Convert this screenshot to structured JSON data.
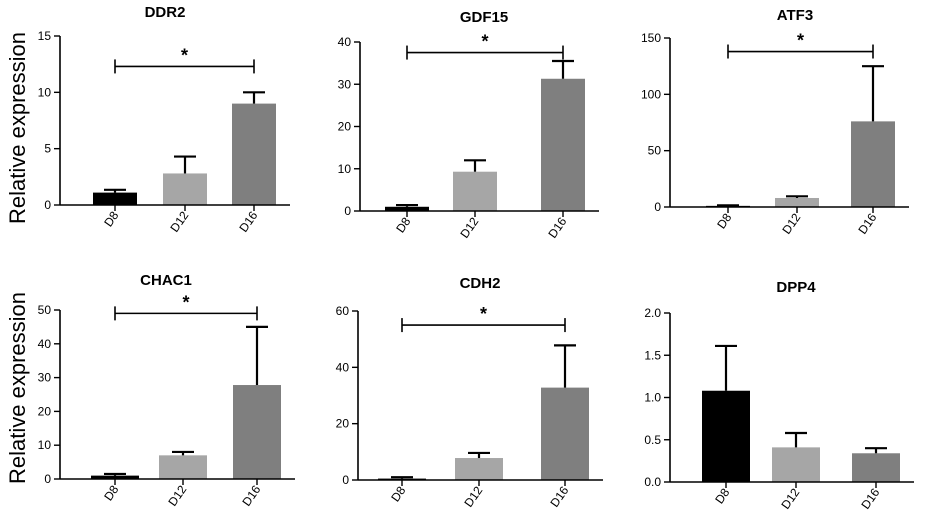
{
  "figure": {
    "ylabel": "Relative expression"
  },
  "colors": {
    "D8": "#000000",
    "D12": "#a6a6a6",
    "D16": "#7f7f7f",
    "axis": "#000000"
  },
  "chart_data": [
    {
      "type": "bar",
      "title": "DDR2",
      "categories": [
        "D8",
        "D12",
        "D16"
      ],
      "values": [
        1.1,
        2.8,
        9.0
      ],
      "errors": [
        0.25,
        1.5,
        1.0
      ],
      "ylim": [
        0,
        15
      ],
      "yticks": [
        0,
        5,
        10,
        15
      ],
      "ytick_labels": [
        "0",
        "5",
        "10",
        "15"
      ],
      "significance": {
        "from": "D8",
        "to": "D16",
        "label": "*",
        "level": 12.3
      }
    },
    {
      "type": "bar",
      "title": "GDF15",
      "categories": [
        "D8",
        "D12",
        "D16"
      ],
      "values": [
        1.0,
        9.3,
        31.3
      ],
      "errors": [
        0.4,
        2.7,
        4.2
      ],
      "ylim": [
        0,
        40
      ],
      "yticks": [
        0,
        10,
        20,
        30,
        40
      ],
      "ytick_labels": [
        "0",
        "10",
        "20",
        "30",
        "40"
      ],
      "significance": {
        "from": "D8",
        "to": "D16",
        "label": "*",
        "level": 37.5
      }
    },
    {
      "type": "bar",
      "title": "ATF3",
      "categories": [
        "D8",
        "D12",
        "D16"
      ],
      "values": [
        1.0,
        8.0,
        76.0
      ],
      "errors": [
        0.5,
        1.5,
        49.0
      ],
      "ylim": [
        0,
        150
      ],
      "yticks": [
        0,
        50,
        100,
        150
      ],
      "ytick_labels": [
        "0",
        "50",
        "100",
        "150"
      ],
      "significance": {
        "from": "D8",
        "to": "D16",
        "label": "*",
        "level": 138
      }
    },
    {
      "type": "bar",
      "title": "CHAC1",
      "categories": [
        "D8",
        "D12",
        "D16"
      ],
      "values": [
        1.0,
        7.0,
        27.8
      ],
      "errors": [
        0.5,
        1.0,
        17.2
      ],
      "ylim": [
        0,
        50
      ],
      "yticks": [
        0,
        10,
        20,
        30,
        40,
        50
      ],
      "ytick_labels": [
        "0",
        "10",
        "20",
        "30",
        "40",
        "50"
      ],
      "significance": {
        "from": "D8",
        "to": "D16",
        "label": "*",
        "level": 49
      }
    },
    {
      "type": "bar",
      "title": "CDH2",
      "categories": [
        "D8",
        "D12",
        "D16"
      ],
      "values": [
        0.5,
        7.8,
        32.8
      ],
      "errors": [
        0.5,
        1.8,
        15.0
      ],
      "ylim": [
        0,
        60
      ],
      "yticks": [
        0,
        20,
        40,
        60
      ],
      "ytick_labels": [
        "0",
        "20",
        "40",
        "60"
      ],
      "significance": {
        "from": "D8",
        "to": "D16",
        "label": "*",
        "level": 55
      }
    },
    {
      "type": "bar",
      "title": "DPP4",
      "categories": [
        "D8",
        "D12",
        "D16"
      ],
      "values": [
        1.08,
        0.41,
        0.34
      ],
      "errors": [
        0.53,
        0.17,
        0.06
      ],
      "ylim": [
        0,
        2.0
      ],
      "yticks": [
        0,
        0.5,
        1.0,
        1.5,
        2.0
      ],
      "ytick_labels": [
        "0.0",
        "0.5",
        "1.0",
        "1.5",
        "2.0"
      ],
      "significance": null
    }
  ]
}
